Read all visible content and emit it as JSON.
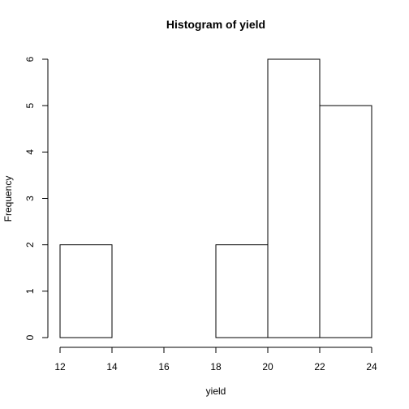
{
  "chart_data": {
    "type": "bar",
    "title": "Histogram of yield",
    "xlabel": "yield",
    "ylabel": "Frequency",
    "bins": [
      {
        "from": 12,
        "to": 14,
        "count": 2
      },
      {
        "from": 14,
        "to": 16,
        "count": 0
      },
      {
        "from": 16,
        "to": 18,
        "count": 0
      },
      {
        "from": 18,
        "to": 20,
        "count": 2
      },
      {
        "from": 20,
        "to": 22,
        "count": 6
      },
      {
        "from": 22,
        "to": 24,
        "count": 5
      }
    ],
    "xlim": [
      12,
      24
    ],
    "ylim": [
      0,
      6
    ],
    "x_ticks": [
      "12",
      "14",
      "16",
      "18",
      "20",
      "22",
      "24"
    ],
    "y_ticks": [
      "0",
      "1",
      "2",
      "3",
      "4",
      "5",
      "6"
    ],
    "grid": false,
    "bar_fill": "#ffffff",
    "bar_stroke": "#000000"
  }
}
